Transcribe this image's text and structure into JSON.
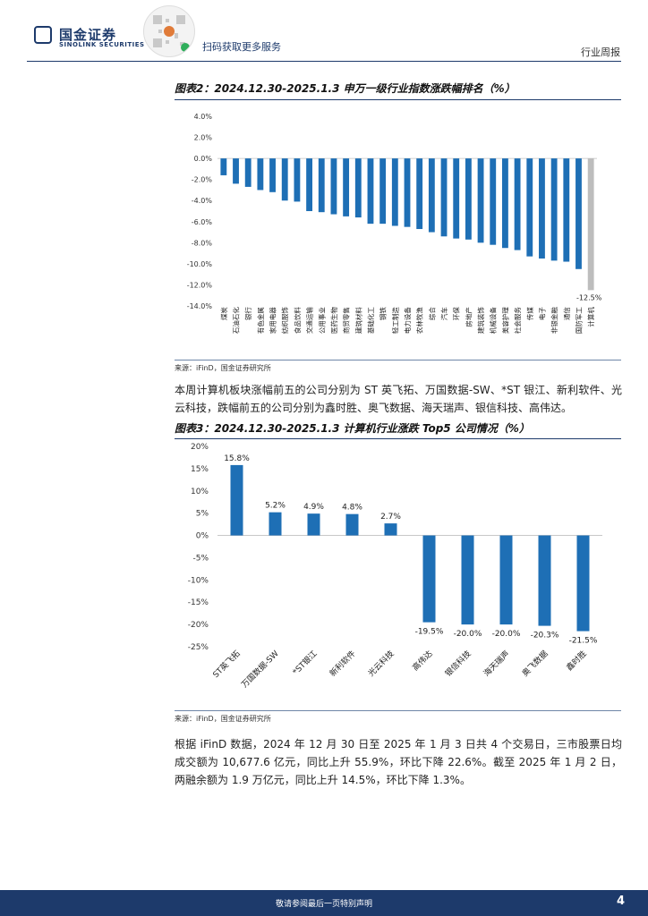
{
  "header": {
    "logo_name": "国金证券",
    "logo_en": "SINOLINK SECURITIES",
    "qr_caption": "扫码获取更多服务",
    "report_type": "行业周报"
  },
  "figure2": {
    "title": "图表2：2024.12.30-2025.1.3 申万一级行业指数涨跌幅排名（%）",
    "source": "来源：iFinD，国金证券研究所"
  },
  "paragraph1": "本周计算机板块涨幅前五的公司分别为 ST 英飞拓、万国数据-SW、*ST 银江、新利软件、光云科技，跌幅前五的公司分别为鑫时胜、奥飞数据、海天瑞声、银信科技、高伟达。",
  "figure3": {
    "title": "图表3：2024.12.30-2025.1.3 计算机行业涨跌 Top5 公司情况（%）",
    "source": "来源：iFinD，国金证券研究所"
  },
  "paragraph2": "根据 iFinD 数据，2024 年 12 月 30 日至 2025 年 1 月 3 日共 4 个交易日，三市股票日均成交额为 10,677.6 亿元，同比上升 55.9%，环比下降 22.6%。截至 2025 年 1 月 2 日，两融余额为 1.9 万亿元，同比上升 14.5%，环比下降 1.3%。",
  "footer": {
    "disclaimer": "敬请参阅最后一页特别声明",
    "page": "4"
  },
  "colors": {
    "bar": "#1e6fb5",
    "highlight": "#bdbdbd",
    "brand": "#1d3a6b"
  },
  "chart_data": [
    {
      "type": "bar",
      "title": "2024.12.30-2025.1.3 申万一级行业指数涨跌幅排名（%）",
      "ylim": [
        -14,
        4
      ],
      "yticks": [
        4,
        2,
        0,
        -2,
        -4,
        -6,
        -8,
        -10,
        -12,
        -14
      ],
      "ytick_labels": [
        "4.0%",
        "2.0%",
        "0.0%",
        "-2.0%",
        "-4.0%",
        "-6.0%",
        "-8.0%",
        "-10.0%",
        "-12.0%",
        "-14.0%"
      ],
      "categories": [
        "煤炭",
        "石油石化",
        "银行",
        "有色金属",
        "家用电器",
        "纺织服饰",
        "食品饮料",
        "交通运输",
        "公用事业",
        "医药生物",
        "商贸零售",
        "建筑材料",
        "基础化工",
        "钢铁",
        "轻工制造",
        "电力设备",
        "农林牧渔",
        "综合",
        "汽车",
        "环保",
        "房地产",
        "建筑装饰",
        "机械设备",
        "美容护理",
        "社会服务",
        "传媒",
        "电子",
        "非银金融",
        "通信",
        "国防军工",
        "计算机"
      ],
      "values": [
        -1.6,
        -2.4,
        -2.7,
        -3.0,
        -3.2,
        -4.0,
        -4.1,
        -5.0,
        -5.1,
        -5.3,
        -5.5,
        -5.6,
        -6.2,
        -6.2,
        -6.4,
        -6.5,
        -6.7,
        -7.0,
        -7.4,
        -7.6,
        -7.7,
        -8.0,
        -8.2,
        -8.5,
        -8.7,
        -9.3,
        -9.5,
        -9.7,
        -9.8,
        -10.5,
        -12.5
      ],
      "highlight_index": 30,
      "data_labels": [
        {
          "index": 30,
          "text": "-12.5%"
        }
      ]
    },
    {
      "type": "bar",
      "title": "2024.12.30-2025.1.3 计算机行业涨跌 Top5 公司情况（%）",
      "ylim": [
        -25,
        20
      ],
      "yticks": [
        20,
        15,
        10,
        5,
        0,
        -5,
        -10,
        -15,
        -20,
        -25
      ],
      "ytick_labels": [
        "20%",
        "15%",
        "10%",
        "5%",
        "0%",
        "-5%",
        "-10%",
        "-15%",
        "-20%",
        "-25%"
      ],
      "categories": [
        "ST英飞拓",
        "万国数据-SW",
        "*ST银江",
        "新利软件",
        "光云科技",
        "高伟达",
        "银信科技",
        "海天瑞声",
        "奥飞数据",
        "鑫时胜"
      ],
      "values": [
        15.8,
        5.2,
        4.9,
        4.8,
        2.7,
        -19.5,
        -20.0,
        -20.0,
        -20.3,
        -21.5
      ],
      "value_labels": [
        "15.8%",
        "5.2%",
        "4.9%",
        "4.8%",
        "2.7%",
        "-19.5%",
        "-20.0%",
        "-20.0%",
        "-20.3%",
        "-21.5%"
      ]
    }
  ]
}
